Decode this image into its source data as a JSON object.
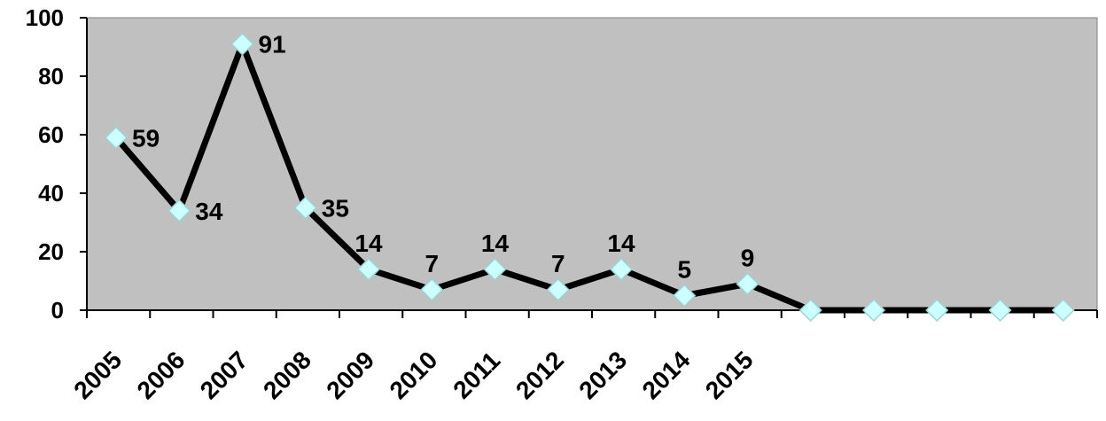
{
  "chart_data": {
    "type": "line",
    "title": "",
    "xlabel": "",
    "ylabel": "",
    "categories": [
      "2005",
      "2006",
      "2007",
      "2008",
      "2009",
      "2010",
      "2011",
      "2012",
      "2013",
      "2014",
      "2015",
      "",
      "",
      "",
      "",
      ""
    ],
    "values": [
      59,
      34,
      91,
      35,
      14,
      7,
      14,
      7,
      14,
      5,
      9,
      0,
      0,
      0,
      0,
      0
    ],
    "data_labels": [
      "59",
      "34",
      "91",
      "35",
      "14",
      "7",
      "14",
      "7",
      "14",
      "5",
      "9",
      "",
      "",
      "",
      "",
      ""
    ],
    "ylim": [
      0,
      100
    ],
    "yticks": [
      0,
      20,
      40,
      60,
      80,
      100
    ],
    "grid": false,
    "legend": "none",
    "colors": {
      "plot_background": "#c0c0c0",
      "line": "#000000",
      "marker_fill": "#ccffff",
      "marker_stroke": "#9dd3d3"
    },
    "marker": "diamond"
  }
}
